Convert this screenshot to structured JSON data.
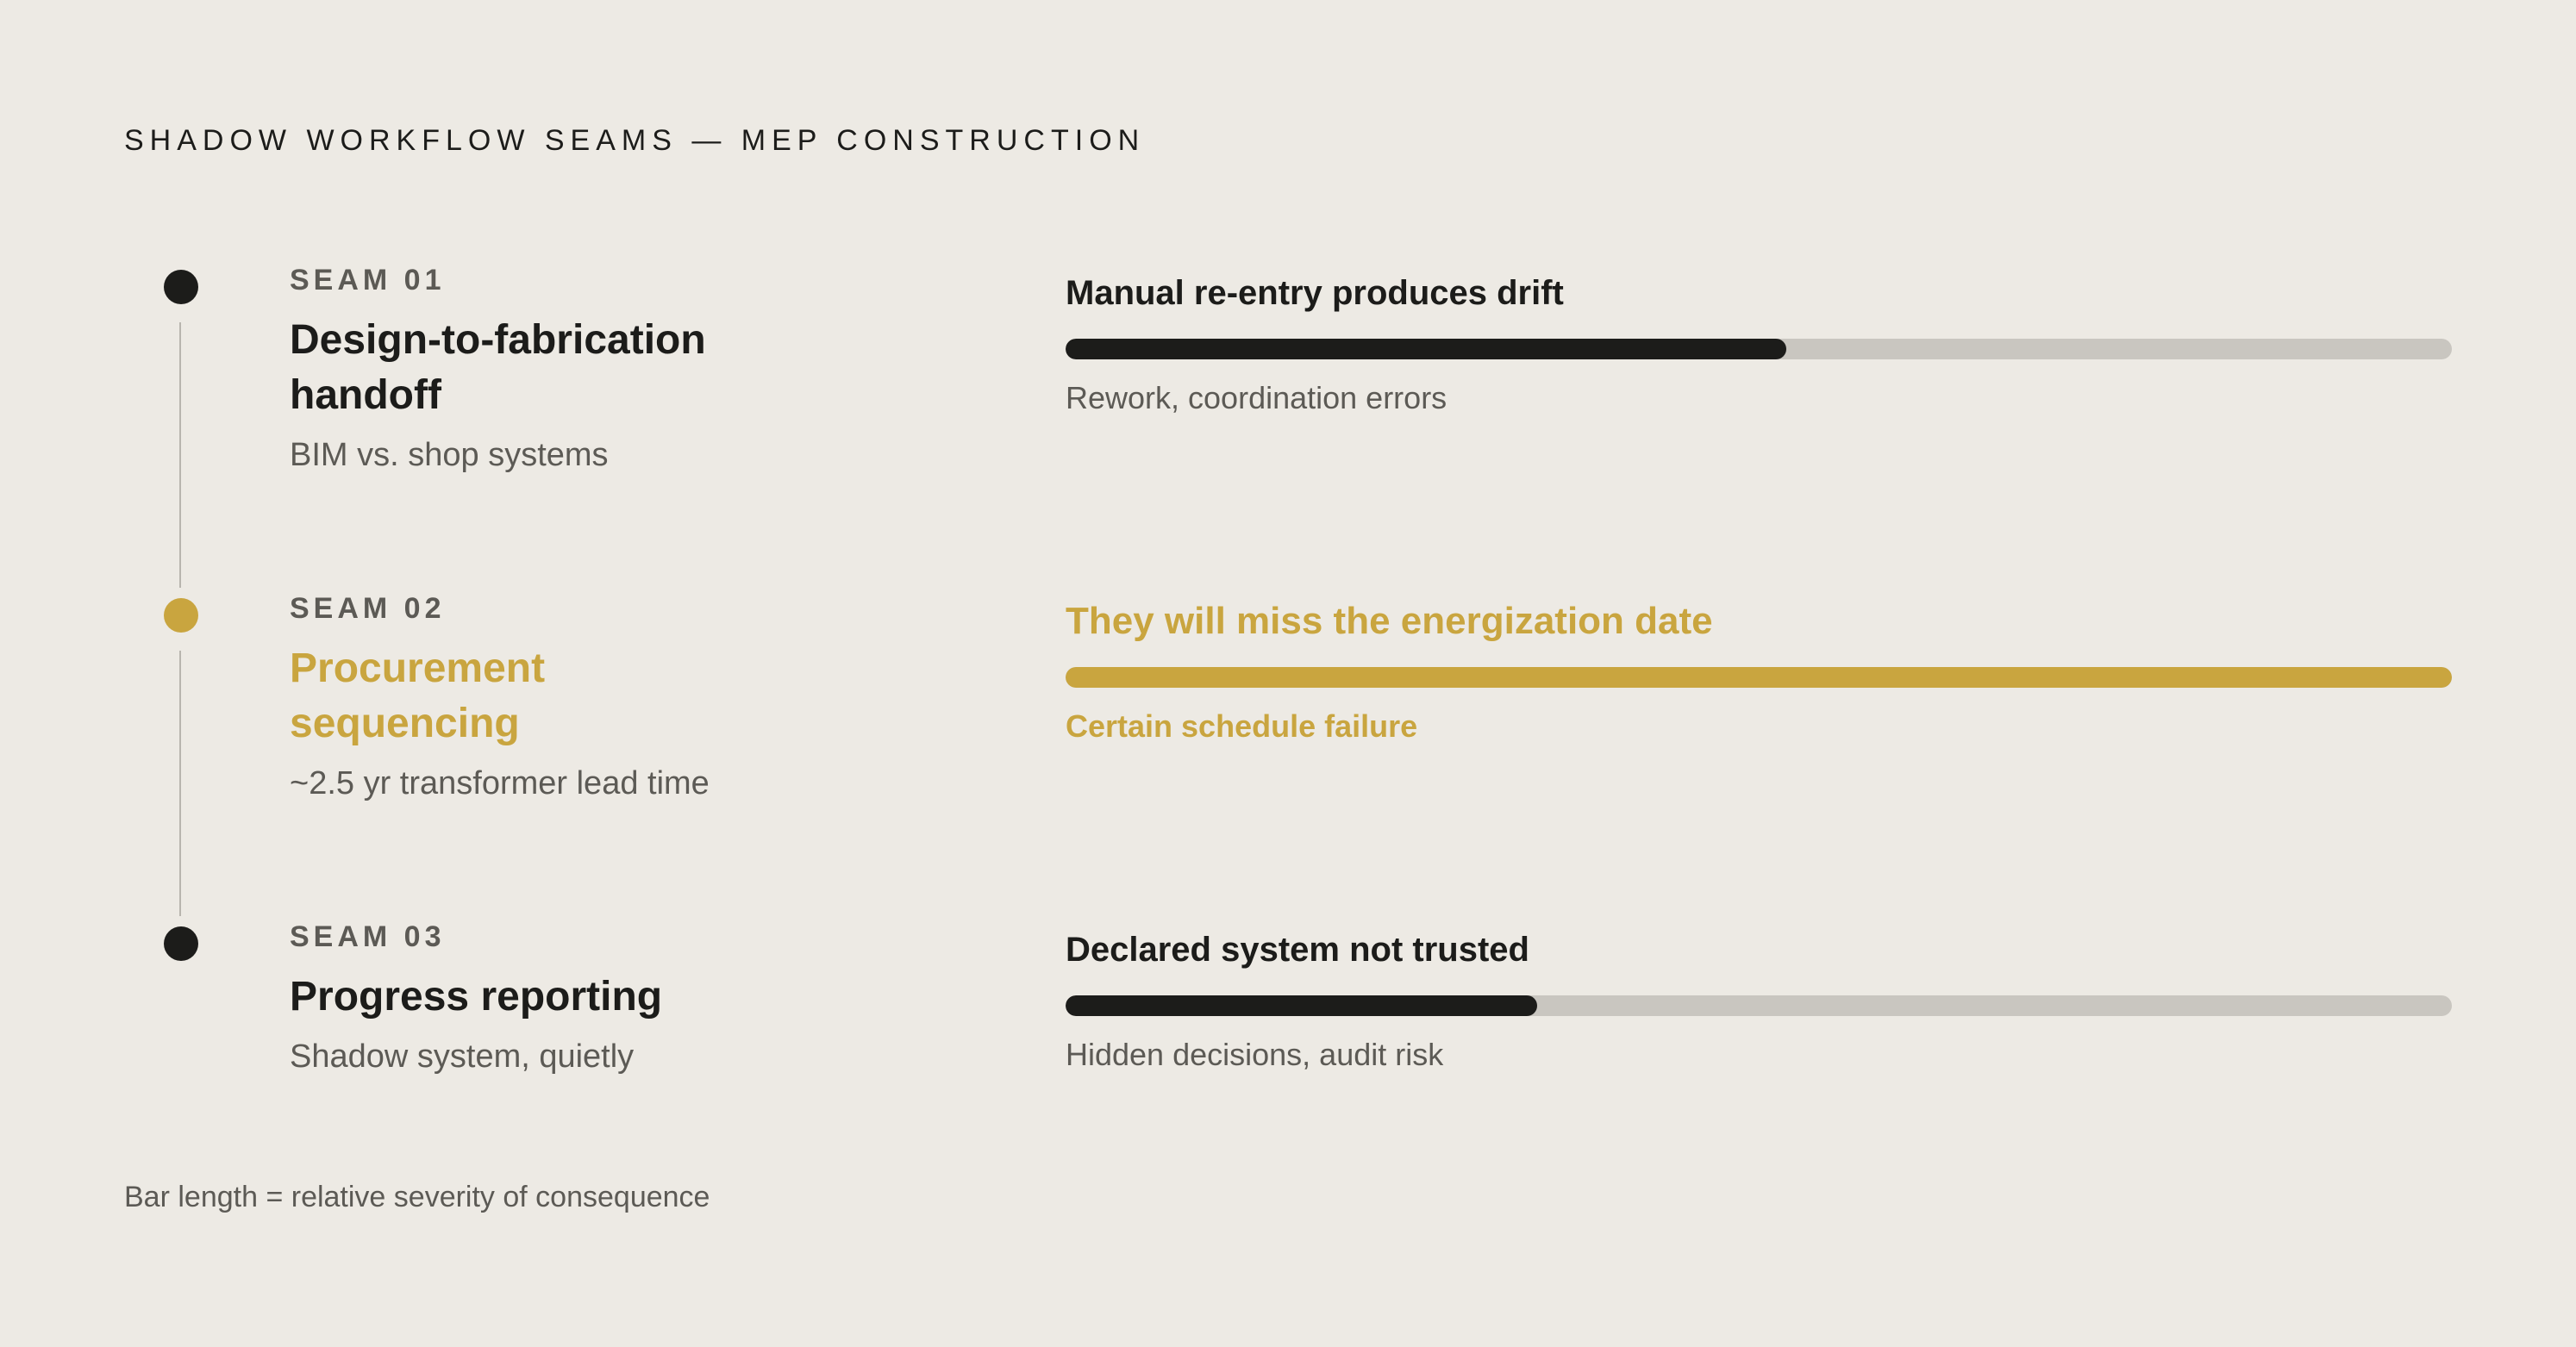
{
  "title": "SHADOW WORKFLOW SEAMS — MEP CONSTRUCTION",
  "colors": {
    "background": "#edeae4",
    "dark": "#1c1c1a",
    "accent": "#c9a53f",
    "track": "#c9c6c0",
    "muted": "#5c5a55"
  },
  "seams": [
    {
      "label": "SEAM 01",
      "title": "Design-to-fabrication handoff",
      "subtitle": "BIM vs. shop systems",
      "consequence": "Manual re-entry produces drift",
      "impact": "Rework, coordination errors",
      "severity": 0.52,
      "highlight": false
    },
    {
      "label": "SEAM 02",
      "title": "Procurement sequencing",
      "subtitle": "~2.5 yr transformer lead time",
      "consequence": "They will miss the energization date",
      "impact": "Certain schedule failure",
      "severity": 1.0,
      "highlight": true
    },
    {
      "label": "SEAM 03",
      "title": "Progress reporting",
      "subtitle": "Shadow system, quietly",
      "consequence": "Declared system not trusted",
      "impact": "Hidden decisions, audit risk",
      "severity": 0.34,
      "highlight": false
    }
  ],
  "footnote": "Bar length = relative severity of consequence"
}
